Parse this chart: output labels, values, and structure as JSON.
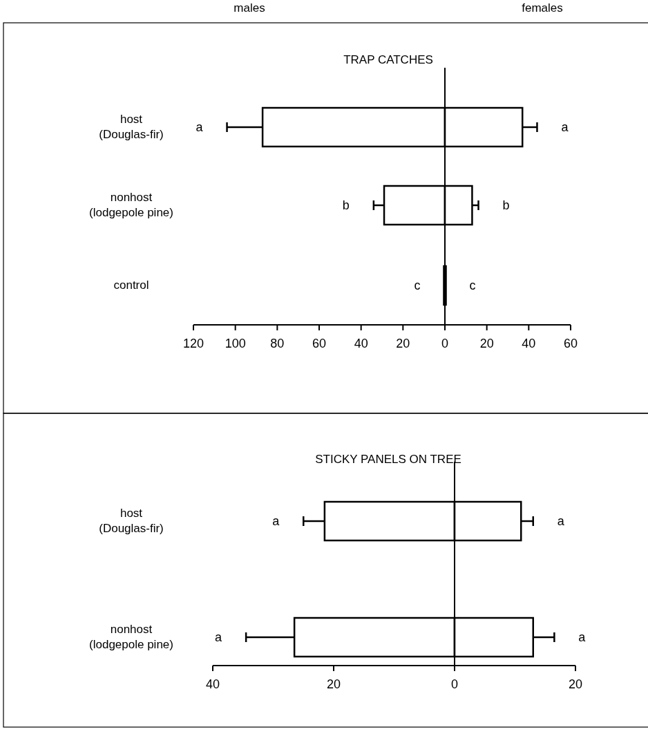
{
  "chart_data": [
    {
      "type": "bar",
      "title": "TRAP CATCHES",
      "orientation": "horizontal",
      "stacked": true,
      "categories": [
        "host\n(Douglas-fir)",
        "nonhost\n(lodgepole pine)",
        "control"
      ],
      "series": [
        {
          "color": "#ffffff",
          "values": [
            -87,
            -29,
            -0.5
          ],
          "errors": [
            [
              -104,
              -87
            ],
            [
              -34,
              -29
            ],
            null
          ]
        },
        {
          "color": "#ffffff",
          "values": [
            37,
            13,
            0.5
          ],
          "errors": [
            [
              37,
              44
            ],
            [
              13,
              16
            ],
            null
          ]
        }
      ],
      "xlim": [
        -120,
        60
      ],
      "xticks": [
        {
          "value": -120,
          "label": "120"
        },
        {
          "value": -100,
          "label": "100"
        },
        {
          "value": -80,
          "label": "80"
        },
        {
          "value": -60,
          "label": "60"
        },
        {
          "value": -40,
          "label": "40"
        },
        {
          "value": -20,
          "label": "20"
        },
        0,
        20,
        40,
        60
      ],
      "ref_lines": [
        {
          "axis": "x",
          "value": 0
        }
      ],
      "annotations": [
        "a",
        "a",
        "b",
        "b",
        "c",
        "c",
        "males",
        "females"
      ]
    },
    {
      "type": "bar",
      "title": "STICKY PANELS ON TREE",
      "orientation": "horizontal",
      "stacked": true,
      "categories": [
        "host\n(Douglas-fir)",
        "nonhost\n(lodgepole pine)"
      ],
      "series": [
        {
          "color": "#ffffff",
          "values": [
            -21.5,
            -26.5
          ],
          "errors": [
            [
              -25,
              -21.5
            ],
            [
              -34.5,
              -26.5
            ]
          ]
        },
        {
          "color": "#ffffff",
          "values": [
            11,
            13
          ],
          "errors": [
            [
              11,
              13
            ],
            [
              13,
              16.5
            ]
          ]
        }
      ],
      "xlim": [
        -40,
        20
      ],
      "xticks": [
        {
          "value": -40,
          "label": "40"
        },
        {
          "value": -20,
          "label": "20"
        },
        0,
        20
      ],
      "ref_lines": [
        {
          "axis": "x",
          "value": 0
        }
      ],
      "annotations": [
        "a",
        "a",
        "a",
        "a"
      ]
    }
  ]
}
